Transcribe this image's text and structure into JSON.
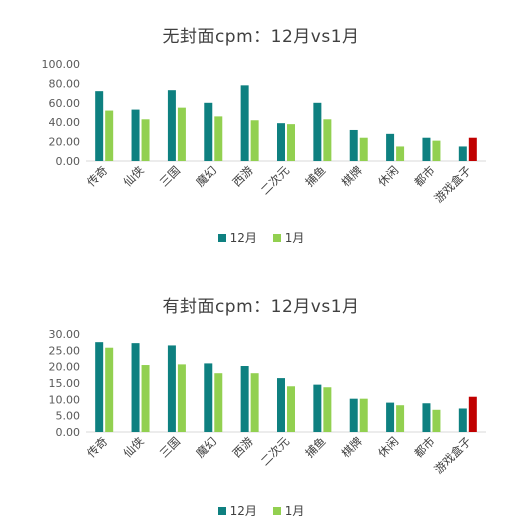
{
  "colors": {
    "dec": "#0e8080",
    "jan": "#92d050",
    "highlight": "#c00000",
    "axis": "#d9d9d9"
  },
  "chart_data": [
    {
      "type": "bar",
      "title": "无封面cpm：12月vs1月",
      "categories": [
        "传奇",
        "仙侠",
        "三国",
        "魔幻",
        "西游",
        "二次元",
        "捕鱼",
        "棋牌",
        "休闲",
        "都市",
        "游戏盒子"
      ],
      "series": [
        {
          "name": "12月",
          "values": [
            72,
            53,
            73,
            60,
            78,
            39,
            60,
            32,
            28,
            24,
            15
          ]
        },
        {
          "name": "1月",
          "values": [
            52,
            43,
            55,
            46,
            42,
            38,
            43,
            24,
            15,
            21,
            24
          ]
        }
      ],
      "highlight": {
        "series": "1月",
        "category": "游戏盒子"
      },
      "ylim": [
        0,
        100
      ],
      "yticks": [
        "100.00",
        "80.00",
        "60.00",
        "40.00",
        "20.00",
        "0.00"
      ],
      "ytick_values": [
        100,
        80,
        60,
        40,
        20,
        0
      ],
      "xlabel": "",
      "ylabel": "",
      "legend": "bottom"
    },
    {
      "type": "bar",
      "title": "有封面cpm：12月vs1月",
      "categories": [
        "传奇",
        "仙侠",
        "三国",
        "魔幻",
        "西游",
        "二次元",
        "捕鱼",
        "棋牌",
        "休闲",
        "都市",
        "游戏盒子"
      ],
      "series": [
        {
          "name": "12月",
          "values": [
            27.5,
            27.2,
            26.5,
            21,
            20.2,
            16.5,
            14.5,
            10.2,
            9,
            8.8,
            7.2
          ]
        },
        {
          "name": "1月",
          "values": [
            25.8,
            20.5,
            20.7,
            18,
            18,
            14,
            13.7,
            10.2,
            8.2,
            6.8,
            10.8
          ]
        }
      ],
      "highlight": {
        "series": "1月",
        "category": "游戏盒子"
      },
      "ylim": [
        0,
        30
      ],
      "yticks": [
        "30.00",
        "25.00",
        "20.00",
        "15.00",
        "10.00",
        "5.00",
        "0.00"
      ],
      "ytick_values": [
        30,
        25,
        20,
        15,
        10,
        5,
        0
      ],
      "xlabel": "",
      "ylabel": "",
      "legend": "bottom"
    }
  ]
}
